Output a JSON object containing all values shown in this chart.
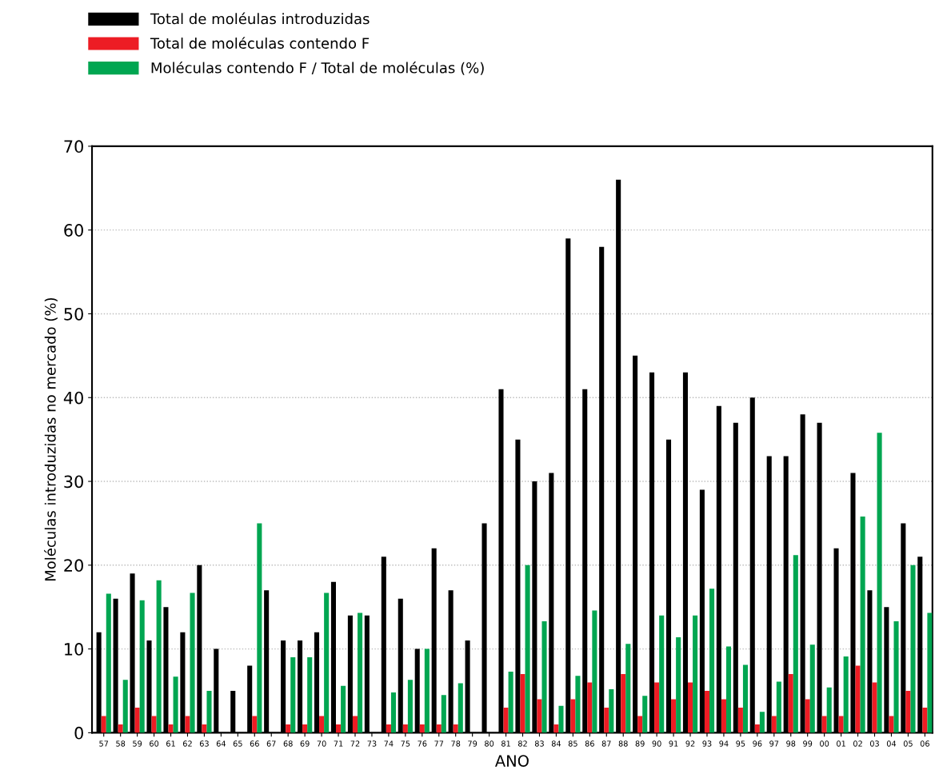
{
  "chart_data": {
    "type": "bar",
    "xlabel": "ANO",
    "ylabel": "Moléculas introduzidas no mercado (%)",
    "categories": [
      "57",
      "58",
      "59",
      "60",
      "61",
      "62",
      "63",
      "64",
      "65",
      "66",
      "67",
      "68",
      "69",
      "70",
      "71",
      "72",
      "73",
      "74",
      "75",
      "76",
      "77",
      "78",
      "79",
      "80",
      "81",
      "82",
      "83",
      "84",
      "85",
      "86",
      "87",
      "88",
      "89",
      "90",
      "91",
      "92",
      "93",
      "94",
      "95",
      "96",
      "97",
      "98",
      "99",
      "00",
      "01",
      "02",
      "03",
      "04",
      "05",
      "06"
    ],
    "series": [
      {
        "name": "Total de moléulas introduzidas",
        "color": "#000000",
        "values": [
          12,
          16,
          19,
          11,
          15,
          12,
          20,
          10,
          5,
          8,
          17,
          11,
          11,
          12,
          18,
          14,
          14,
          21,
          16,
          10,
          22,
          17,
          11,
          25,
          41,
          35,
          30,
          31,
          59,
          41,
          58,
          66,
          45,
          43,
          35,
          43,
          29,
          39,
          37,
          40,
          33,
          33,
          38,
          37,
          22,
          31,
          17,
          15,
          25,
          21
        ]
      },
      {
        "name": "Total de moléculas contendo F",
        "color": "#ed1c24",
        "values": [
          2,
          1,
          3,
          2,
          1,
          2,
          1,
          0,
          0,
          2,
          0,
          1,
          1,
          2,
          1,
          2,
          0,
          1,
          1,
          1,
          1,
          1,
          0,
          0,
          3,
          7,
          4,
          1,
          4,
          6,
          3,
          7,
          2,
          6,
          4,
          6,
          5,
          4,
          3,
          1,
          2,
          7,
          4,
          2,
          2,
          8,
          6,
          2,
          5,
          3
        ]
      },
      {
        "name": "Moléculas contendo F / Total de moléculas (%)",
        "color": "#00a651",
        "values": [
          16.6,
          6.3,
          15.8,
          18.2,
          6.7,
          16.7,
          5,
          0,
          0,
          25,
          0,
          9,
          9,
          16.7,
          5.6,
          14.3,
          0,
          4.8,
          6.3,
          10,
          4.5,
          5.9,
          0,
          0,
          7.3,
          20,
          13.3,
          3.2,
          6.8,
          14.6,
          5.2,
          10.6,
          4.4,
          14,
          11.4,
          14,
          17.2,
          10.3,
          8.1,
          2.5,
          6.1,
          21.2,
          10.5,
          5.4,
          9.1,
          25.8,
          35.8,
          13.3,
          20,
          14.3
        ]
      }
    ],
    "ylim": [
      0,
      70
    ],
    "yticks": [
      0,
      10,
      20,
      30,
      40,
      50,
      60,
      70
    ],
    "grid": "y",
    "legend": "top left"
  }
}
